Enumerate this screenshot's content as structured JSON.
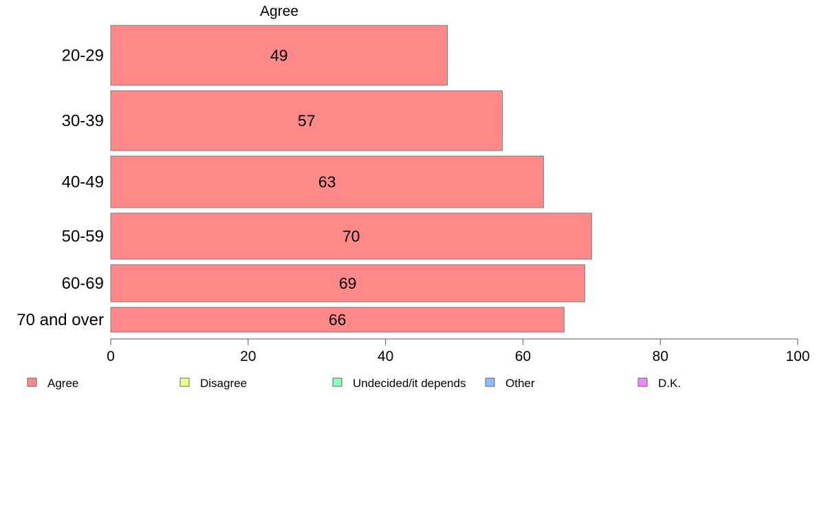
{
  "chart_data": {
    "type": "bar",
    "orientation": "horizontal",
    "panel_label": "Agree",
    "categories": [
      "20-29",
      "30-39",
      "40-49",
      "50-59",
      "60-69",
      "70 and over"
    ],
    "series": [
      {
        "name": "Agree",
        "values": [
          49,
          57,
          63,
          70,
          69,
          66
        ],
        "color": "#ff8888"
      }
    ],
    "xlim": [
      0,
      100
    ],
    "xticks": [
      0,
      20,
      40,
      60,
      80,
      100
    ],
    "grid": false,
    "legend": {
      "placement": "bottom",
      "entries": [
        {
          "label": "Agree",
          "color": "#ff8888"
        },
        {
          "label": "Disagree",
          "color": "#eeff88"
        },
        {
          "label": "Undecided/it depends",
          "color": "#88ffbb"
        },
        {
          "label": "Other",
          "color": "#88bbff"
        },
        {
          "label": "D.K.",
          "color": "#ee88ff"
        }
      ]
    }
  }
}
